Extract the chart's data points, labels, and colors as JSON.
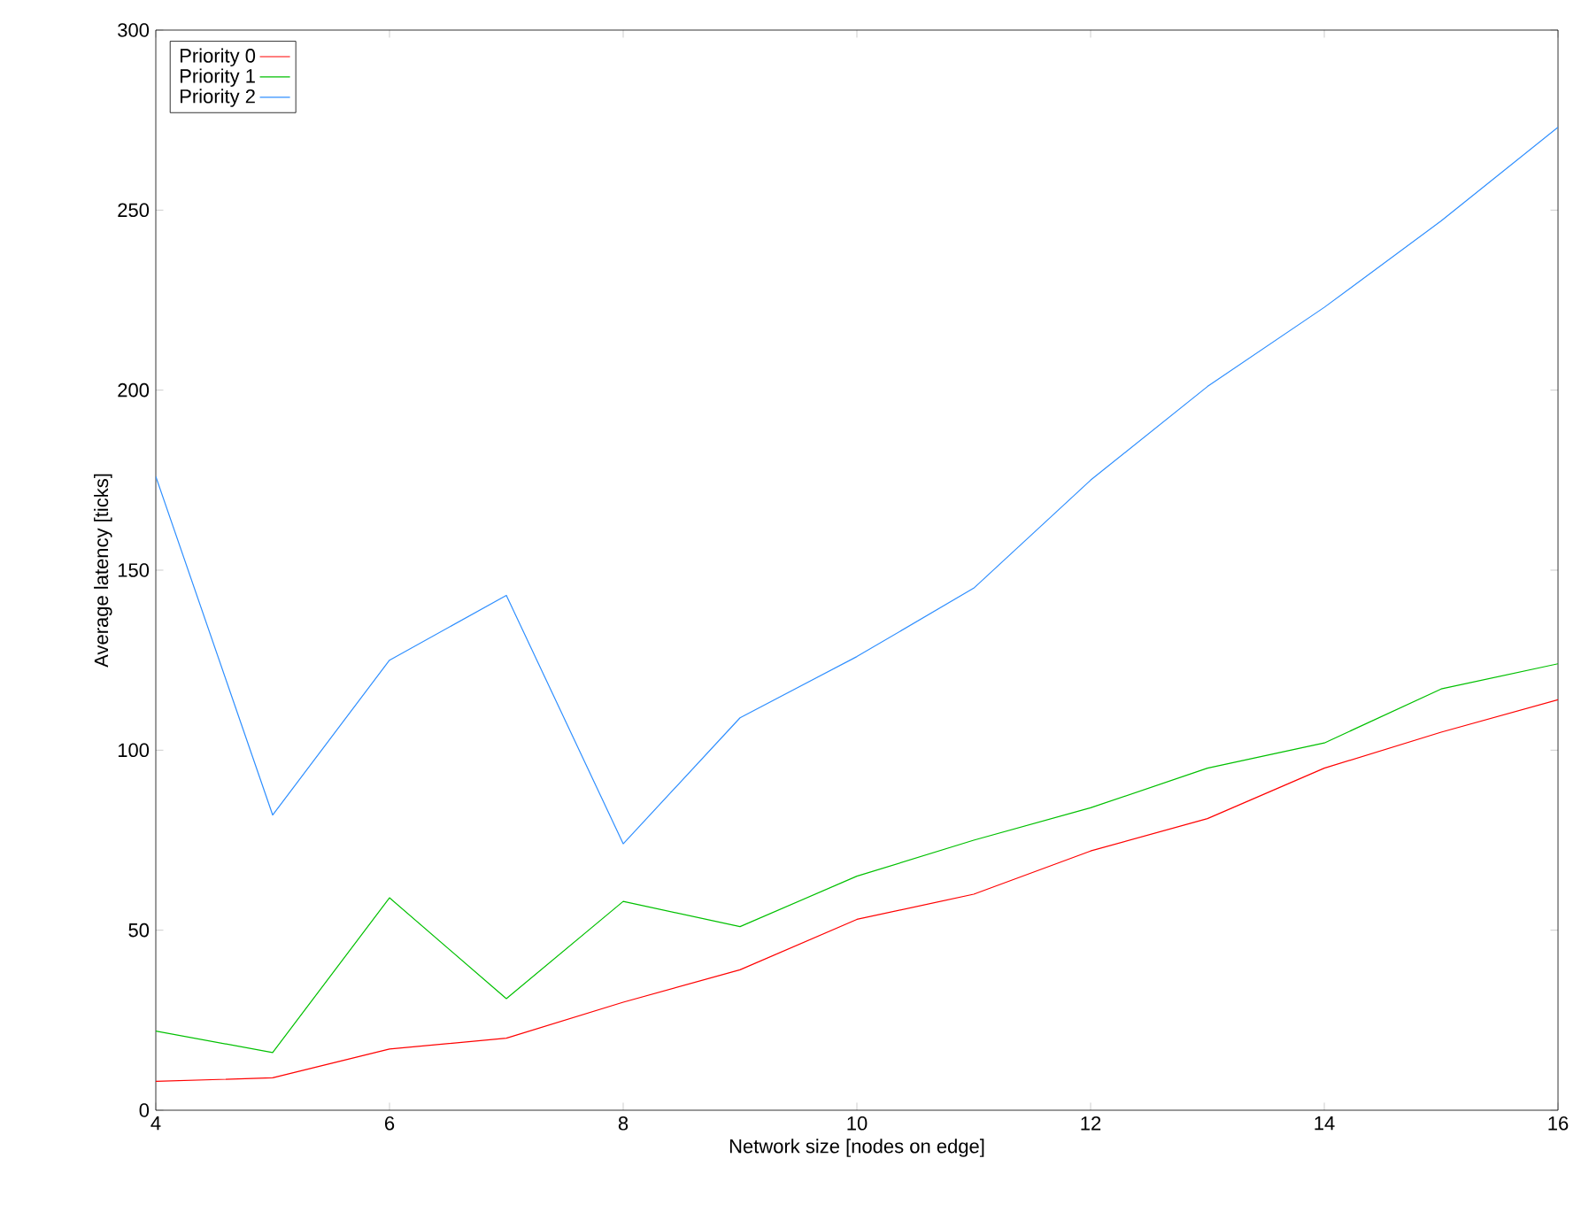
{
  "chart_data": {
    "type": "line",
    "xlabel": "Network size [nodes on edge]",
    "ylabel": "Average latency [ticks]",
    "x": [
      4,
      5,
      6,
      7,
      8,
      9,
      10,
      11,
      12,
      13,
      14,
      15,
      16
    ],
    "series": [
      {
        "name": "Priority 0",
        "color": "#ff0000",
        "values": [
          8,
          9,
          17,
          20,
          30,
          39,
          53,
          60,
          72,
          81,
          95,
          105,
          114
        ]
      },
      {
        "name": "Priority 1",
        "color": "#00c000",
        "values": [
          22,
          16,
          59,
          31,
          58,
          51,
          65,
          75,
          84,
          95,
          102,
          117,
          124
        ]
      },
      {
        "name": "Priority 2",
        "color": "#2f8fff",
        "values": [
          176,
          82,
          125,
          143,
          74,
          109,
          126,
          145,
          175,
          201,
          223,
          247,
          273
        ]
      }
    ],
    "xlim": [
      4,
      16
    ],
    "ylim": [
      0,
      300
    ],
    "xticks": [
      4,
      6,
      8,
      10,
      12,
      14,
      16
    ],
    "yticks": [
      0,
      50,
      100,
      150,
      200,
      250,
      300
    ],
    "legend": "top left",
    "marker": "none",
    "grid": false
  }
}
